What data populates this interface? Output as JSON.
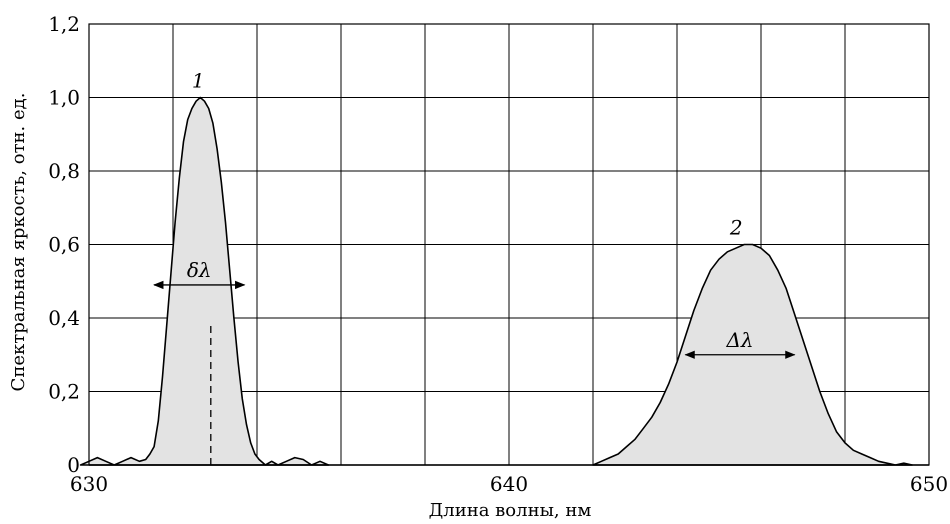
{
  "chart_data": {
    "type": "area",
    "title": "",
    "xlabel": "Длина волны, нм",
    "ylabel": "Спектральная яркость, отн. ед.",
    "xlim": [
      630,
      650
    ],
    "ylim": [
      0,
      1.2
    ],
    "x_ticks": [
      630,
      640,
      650
    ],
    "x_tick_labels": [
      "630",
      "640",
      "650"
    ],
    "y_ticks": [
      0,
      0.2,
      0.4,
      0.6,
      0.8,
      1.0,
      1.2
    ],
    "y_tick_labels": [
      "0",
      "0,2",
      "0,4",
      "0,6",
      "0,8",
      "1,0",
      "1,2"
    ],
    "x_grid_step": 2,
    "grid": true,
    "series": [
      {
        "x": [
          629.8,
          630.0,
          630.2,
          630.4,
          630.6,
          630.8,
          631.0,
          631.2,
          631.35,
          631.45,
          631.55,
          631.65,
          631.75,
          631.85,
          631.95,
          632.05,
          632.15,
          632.25,
          632.35,
          632.45,
          632.55,
          632.65,
          632.75,
          632.85,
          632.95,
          633.05,
          633.15,
          633.25,
          633.35,
          633.45,
          633.55,
          633.65,
          633.75,
          633.85,
          633.95,
          634.05,
          634.2,
          634.35,
          634.5,
          634.7,
          634.9,
          635.1,
          635.3,
          635.5,
          635.7
        ],
        "values": [
          0.0,
          0.01,
          0.02,
          0.01,
          0.0,
          0.01,
          0.02,
          0.01,
          0.015,
          0.03,
          0.05,
          0.12,
          0.24,
          0.38,
          0.52,
          0.66,
          0.78,
          0.88,
          0.94,
          0.97,
          0.99,
          1.0,
          0.99,
          0.97,
          0.93,
          0.86,
          0.77,
          0.66,
          0.53,
          0.4,
          0.28,
          0.18,
          0.11,
          0.06,
          0.03,
          0.015,
          0.0,
          0.01,
          0.0,
          0.01,
          0.02,
          0.015,
          0.0,
          0.01,
          0.0
        ]
      },
      {
        "x": [
          642.0,
          642.2,
          642.4,
          642.6,
          642.8,
          643.0,
          643.2,
          643.4,
          643.6,
          643.8,
          644.0,
          644.2,
          644.4,
          644.6,
          644.8,
          645.0,
          645.2,
          645.4,
          645.6,
          645.8,
          646.0,
          646.2,
          646.4,
          646.6,
          646.8,
          647.0,
          647.2,
          647.4,
          647.6,
          647.8,
          648.0,
          648.2,
          648.4,
          648.6,
          648.8,
          649.0,
          649.2,
          649.4,
          649.6
        ],
        "values": [
          0.0,
          0.01,
          0.02,
          0.03,
          0.05,
          0.07,
          0.1,
          0.13,
          0.17,
          0.22,
          0.28,
          0.35,
          0.42,
          0.48,
          0.53,
          0.56,
          0.58,
          0.59,
          0.6,
          0.6,
          0.59,
          0.57,
          0.53,
          0.48,
          0.41,
          0.34,
          0.27,
          0.2,
          0.14,
          0.09,
          0.06,
          0.04,
          0.03,
          0.02,
          0.01,
          0.005,
          0.0,
          0.005,
          0.0
        ]
      }
    ],
    "annotations": {
      "peak1_label": "1",
      "peak2_label": "2",
      "width1_label": "δλ",
      "width2_label": "Δλ",
      "width1_range": [
        631.55,
        633.7
      ],
      "width1_level": 0.49,
      "width2_range": [
        644.2,
        646.8
      ],
      "width2_level": 0.3,
      "peak1_x": 632.9,
      "dashed_range": [
        0,
        0.39
      ]
    }
  }
}
